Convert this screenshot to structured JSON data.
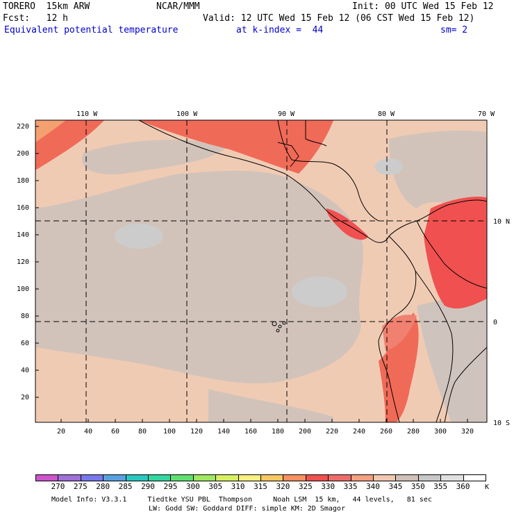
{
  "header": {
    "model": "TORERO  15km ARW",
    "center": "NCAR/MMM",
    "init": "Init: 00 UTC Wed 15 Feb 12",
    "fcst": "Fcst:   12 h",
    "valid": "Valid: 12 UTC Wed 15 Feb 12 (06 CST Wed 15 Feb 12)",
    "field": "Equivalent potential temperature",
    "level": "at k-index =  44",
    "smooth": "sm= 2"
  },
  "lon_labels": [
    "110 W",
    "100 W",
    "90 W",
    "80 W",
    "70 W"
  ],
  "lat_labels": [
    "10 N",
    "0",
    "10 S"
  ],
  "y_ticks": [
    "220",
    "200",
    "180",
    "160",
    "140",
    "120",
    "100",
    "80",
    "60",
    "40",
    "20"
  ],
  "x_ticks": [
    "20",
    "40",
    "60",
    "80",
    "100",
    "120",
    "140",
    "160",
    "180",
    "200",
    "220",
    "240",
    "260",
    "280",
    "300",
    "320"
  ],
  "legend": {
    "values": [
      "270",
      "275",
      "280",
      "285",
      "290",
      "295",
      "300",
      "305",
      "310",
      "315",
      "320",
      "325",
      "330",
      "335",
      "340",
      "345",
      "350",
      "355",
      "360"
    ],
    "unit": "K",
    "colors": [
      "#cc55cc",
      "#a070d8",
      "#7878ee",
      "#5aa0e0",
      "#28c8c0",
      "#30d8a0",
      "#60e070",
      "#a0e860",
      "#d8f060",
      "#f8f080",
      "#f8c860",
      "#f89060",
      "#f05050",
      "#f06a6a",
      "#f5a080",
      "#f0c8b0",
      "#d0c0b8",
      "#c8c8c8",
      "#e0e0e0",
      "#ffffff"
    ]
  },
  "footer": {
    "line1": "Model Info: V3.3.1     Tiedtke YSU PBL  Thompson     Noah LSM  15 km,   44 levels,   81 sec",
    "line2": "LW: Godd SW: Goddard DIFF: simple KM: 2D Smagor"
  }
}
